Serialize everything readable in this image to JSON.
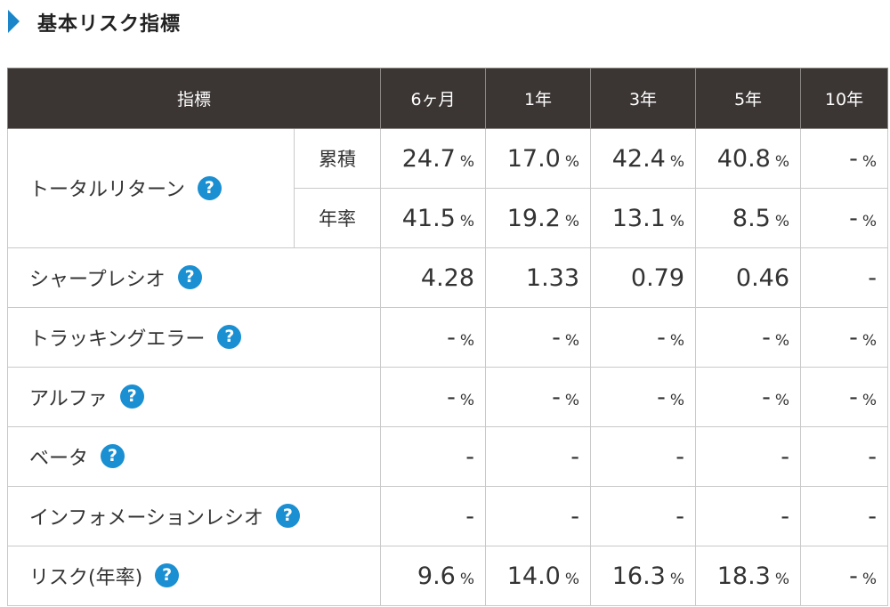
{
  "section_title": "基本リスク指標",
  "help_glyph": "?",
  "header": {
    "indicator": "指標",
    "periods": [
      "6ヶ月",
      "1年",
      "3年",
      "5年",
      "10年"
    ]
  },
  "total_return": {
    "label": "トータルリターン",
    "cumulative": {
      "label": "累積",
      "values": [
        "24.7",
        "17.0",
        "42.4",
        "40.8",
        "-"
      ],
      "unit": "%"
    },
    "annual": {
      "label": "年率",
      "values": [
        "41.5",
        "19.2",
        "13.1",
        "8.5",
        "-"
      ],
      "unit": "%"
    }
  },
  "rows": [
    {
      "label": "シャープレシオ",
      "values": [
        "4.28",
        "1.33",
        "0.79",
        "0.46",
        "-"
      ],
      "unit": ""
    },
    {
      "label": "トラッキングエラー",
      "values": [
        "-",
        "-",
        "-",
        "-",
        "-"
      ],
      "unit": "%"
    },
    {
      "label": "アルファ",
      "values": [
        "-",
        "-",
        "-",
        "-",
        "-"
      ],
      "unit": "%"
    },
    {
      "label": "ベータ",
      "values": [
        "-",
        "-",
        "-",
        "-",
        "-"
      ],
      "unit": ""
    },
    {
      "label": "インフォメーションレシオ",
      "values": [
        "-",
        "-",
        "-",
        "-",
        "-"
      ],
      "unit": ""
    },
    {
      "label": "リスク(年率)",
      "values": [
        "9.6",
        "14.0",
        "16.3",
        "18.3",
        "-"
      ],
      "unit": "%"
    }
  ],
  "colors": {
    "accent_arrow": "#1a86c9",
    "header_bg": "#3b3634",
    "help_icon": "#1a8fd2"
  }
}
